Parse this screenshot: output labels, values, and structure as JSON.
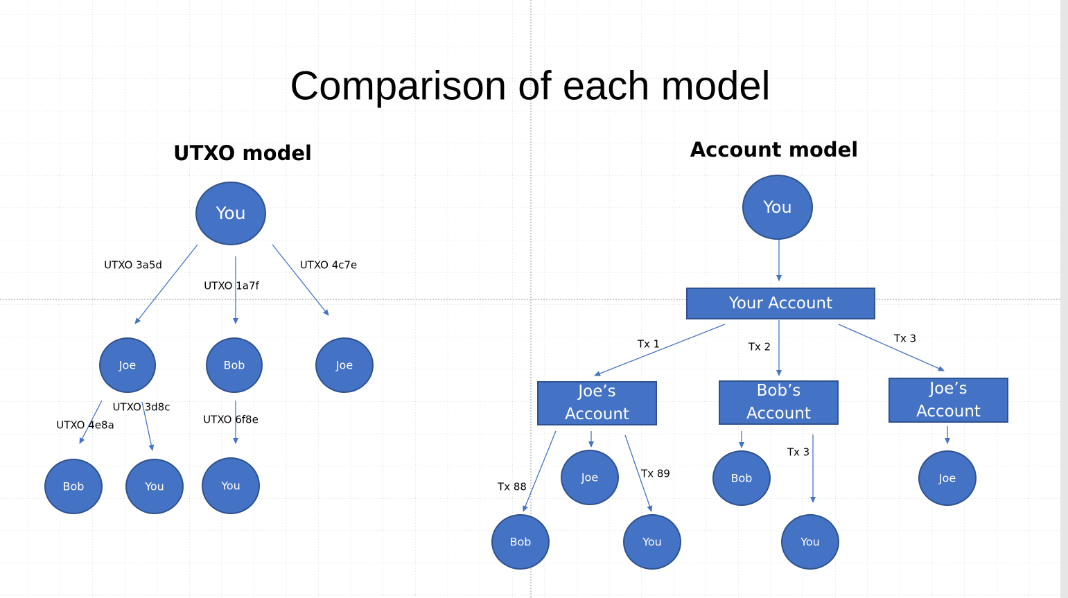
{
  "title": "Comparison of each model",
  "utxo": {
    "title": "UTXO model",
    "nodes": [
      {
        "label": "You"
      },
      {
        "label": "Joe"
      },
      {
        "label": "Bob"
      },
      {
        "label": "Joe"
      },
      {
        "label": "Bob"
      },
      {
        "label": "You"
      },
      {
        "label": "You"
      }
    ],
    "edges": [
      {
        "label": "UTXO 3a5d"
      },
      {
        "label": "UTXO 1a7f"
      },
      {
        "label": "UTXO 4c7e"
      },
      {
        "label": "UTXO 3d8c"
      },
      {
        "label": "UTXO 4e8a"
      },
      {
        "label": "UTXO 6f8e"
      }
    ]
  },
  "account": {
    "title": "Account model",
    "nodes": [
      {
        "label": "You"
      },
      {
        "label": "Your Account"
      },
      {
        "label": "Joe’s Account"
      },
      {
        "label": "Bob’s Account"
      },
      {
        "label": "Joe’s Account"
      },
      {
        "label": "Joe"
      },
      {
        "label": "Bob"
      },
      {
        "label": "Joe"
      },
      {
        "label": "Bob"
      },
      {
        "label": "You"
      },
      {
        "label": "You"
      }
    ],
    "edges": [
      {
        "label": "Tx 1"
      },
      {
        "label": "Tx 2"
      },
      {
        "label": "Tx 3"
      },
      {
        "label": "Tx 88"
      },
      {
        "label": "Tx 89"
      },
      {
        "label": "Tx 3"
      }
    ]
  }
}
